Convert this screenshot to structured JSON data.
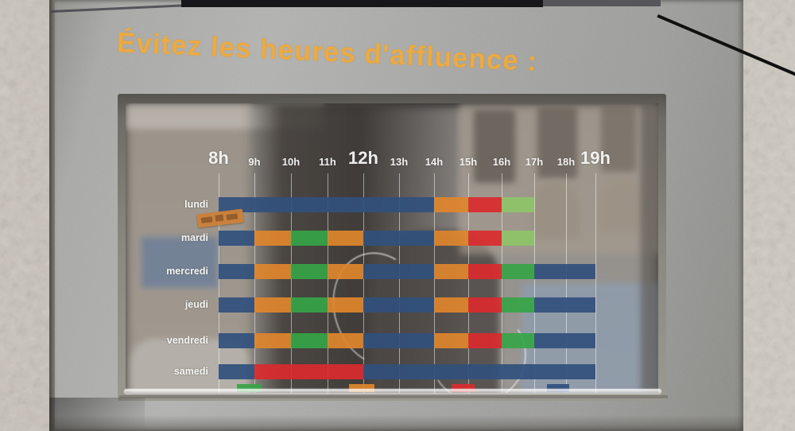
{
  "sign": {
    "title": "Évitez les heures d'affluence :",
    "title_color": "#ecaa40",
    "sticker": {
      "present": true,
      "color": "#cd8039",
      "note_text_visible": false
    }
  },
  "chart_data": {
    "type": "heatmap",
    "title": "Évitez les heures d'affluence :",
    "x_hours": [
      {
        "label": "8h",
        "emph": true
      },
      {
        "label": "9h",
        "emph": false
      },
      {
        "label": "10h",
        "emph": false
      },
      {
        "label": "11h",
        "emph": false
      },
      {
        "label": "12h",
        "emph": true
      },
      {
        "label": "13h",
        "emph": false
      },
      {
        "label": "14h",
        "emph": false
      },
      {
        "label": "15h",
        "emph": false
      },
      {
        "label": "16h",
        "emph": false
      },
      {
        "label": "17h",
        "emph": false
      },
      {
        "label": "18h",
        "emph": false
      },
      {
        "label": "19h",
        "emph": true
      }
    ],
    "colors": {
      "navy": "#31507d",
      "orange": "#e0862c",
      "red": "#da2a2e",
      "green": "#36a447",
      "lightgreen": "#8dc468"
    },
    "rows": [
      {
        "day": "lundi",
        "segments": [
          {
            "from": 8,
            "to": 14,
            "color": "navy"
          },
          {
            "from": 14,
            "to": 15,
            "color": "orange"
          },
          {
            "from": 15,
            "to": 16,
            "color": "red"
          },
          {
            "from": 16,
            "to": 17,
            "color": "lightgreen"
          }
        ]
      },
      {
        "day": "mardi",
        "segments": [
          {
            "from": 8,
            "to": 9,
            "color": "navy"
          },
          {
            "from": 9,
            "to": 10,
            "color": "orange"
          },
          {
            "from": 10,
            "to": 11,
            "color": "green"
          },
          {
            "from": 11,
            "to": 12,
            "color": "orange"
          },
          {
            "from": 12,
            "to": 14,
            "color": "navy"
          },
          {
            "from": 14,
            "to": 15,
            "color": "orange"
          },
          {
            "from": 15,
            "to": 16,
            "color": "red"
          },
          {
            "from": 16,
            "to": 17,
            "color": "lightgreen"
          }
        ]
      },
      {
        "day": "mercredi",
        "segments": [
          {
            "from": 8,
            "to": 9,
            "color": "navy"
          },
          {
            "from": 9,
            "to": 10,
            "color": "orange"
          },
          {
            "from": 10,
            "to": 11,
            "color": "green"
          },
          {
            "from": 11,
            "to": 12,
            "color": "orange"
          },
          {
            "from": 12,
            "to": 14,
            "color": "navy"
          },
          {
            "from": 14,
            "to": 15,
            "color": "orange"
          },
          {
            "from": 15,
            "to": 16,
            "color": "red"
          },
          {
            "from": 16,
            "to": 17,
            "color": "green"
          },
          {
            "from": 17,
            "to": 19,
            "color": "navy"
          }
        ]
      },
      {
        "day": "jeudi",
        "segments": [
          {
            "from": 8,
            "to": 9,
            "color": "navy"
          },
          {
            "from": 9,
            "to": 10,
            "color": "orange"
          },
          {
            "from": 10,
            "to": 11,
            "color": "green"
          },
          {
            "from": 11,
            "to": 12,
            "color": "orange"
          },
          {
            "from": 12,
            "to": 14,
            "color": "navy"
          },
          {
            "from": 14,
            "to": 15,
            "color": "orange"
          },
          {
            "from": 15,
            "to": 16,
            "color": "red"
          },
          {
            "from": 16,
            "to": 17,
            "color": "green"
          },
          {
            "from": 17,
            "to": 19,
            "color": "navy"
          }
        ]
      },
      {
        "day": "vendredi",
        "segments": [
          {
            "from": 8,
            "to": 9,
            "color": "navy"
          },
          {
            "from": 9,
            "to": 10,
            "color": "orange"
          },
          {
            "from": 10,
            "to": 11,
            "color": "green"
          },
          {
            "from": 11,
            "to": 12,
            "color": "orange"
          },
          {
            "from": 12,
            "to": 14,
            "color": "navy"
          },
          {
            "from": 14,
            "to": 15,
            "color": "orange"
          },
          {
            "from": 15,
            "to": 16,
            "color": "red"
          },
          {
            "from": 16,
            "to": 17,
            "color": "green"
          },
          {
            "from": 17,
            "to": 19,
            "color": "navy"
          }
        ]
      },
      {
        "day": "samedi",
        "segments": [
          {
            "from": 8,
            "to": 9,
            "color": "navy"
          },
          {
            "from": 9,
            "to": 12,
            "color": "red"
          },
          {
            "from": 12,
            "to": 19,
            "color": "navy"
          }
        ]
      }
    ],
    "partial_bottom_row": {
      "day": "",
      "segments": [
        {
          "from": 8.5,
          "to": 9.2,
          "color": "green"
        },
        {
          "from": 11.6,
          "to": 12.3,
          "color": "orange"
        },
        {
          "from": 14.5,
          "to": 15.2,
          "color": "red"
        },
        {
          "from": 17.4,
          "to": 18.1,
          "color": "navy"
        }
      ]
    },
    "legend": "none shown",
    "grid": true
  }
}
